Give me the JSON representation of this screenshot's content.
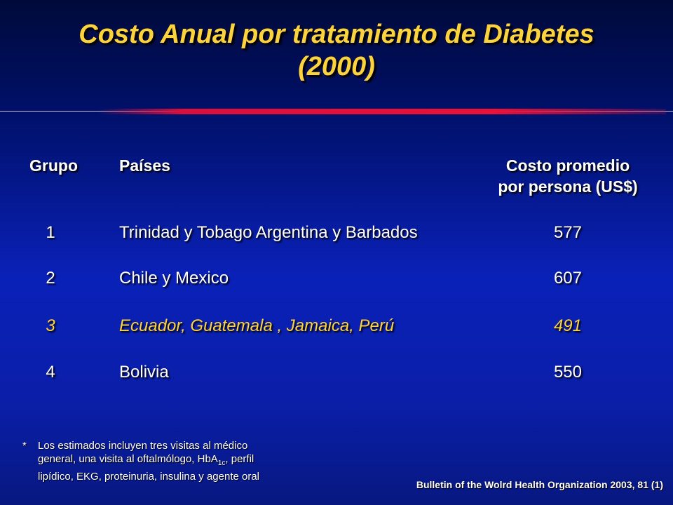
{
  "title": {
    "line1": "Costo Anual por tratamiento de Diabetes",
    "line2": "(2000)"
  },
  "table": {
    "headers": {
      "grupo": "Grupo",
      "paises": "Países",
      "costo_line1": "Costo promedio",
      "costo_line2": "por persona (US$)"
    },
    "rows": [
      {
        "grupo": "1",
        "paises": "Trinidad y Tobago Argentina y  Barbados",
        "costo": "577"
      },
      {
        "grupo": "2",
        "paises": "Chile y Mexico",
        "costo": "607"
      },
      {
        "grupo": "3",
        "paises": "Ecuador, Guatemala , Jamaica, Perú",
        "costo": "491"
      },
      {
        "grupo": "4",
        "paises": "Bolivia",
        "costo": "550"
      }
    ]
  },
  "note": {
    "star": "*",
    "line1": "Los estimados incluyen tres visitas al médico",
    "line2_pre": "general, una visita al oftalmólogo, HbA",
    "line2_sub": "1c",
    "line2_post": ", perfil",
    "line3": "lipídico, EKG, proteinuria, insulina y agente oral"
  },
  "source": "Bulletin of the Wolrd Health Organization 2003, 81 (1)",
  "colors": {
    "title": "#ffd33c",
    "highlight_row": "#ffd33c",
    "text": "#ffffff",
    "divider": "#e8123a"
  }
}
